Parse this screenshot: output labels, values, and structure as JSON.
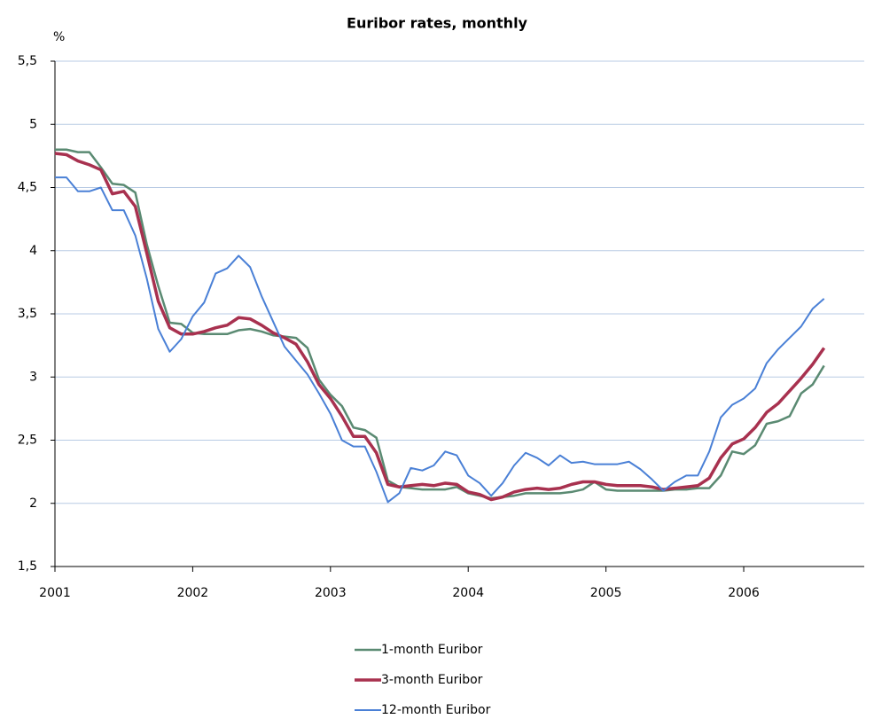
{
  "chart_data": {
    "type": "line",
    "title": "Euribor rates, monthly",
    "y_label": "%",
    "x": [
      2001,
      2001.0833,
      2001.1667,
      2001.25,
      2001.3333,
      2001.4167,
      2001.5,
      2001.5833,
      2001.6667,
      2001.75,
      2001.8333,
      2001.9167,
      2002,
      2002.0833,
      2002.1667,
      2002.25,
      2002.3333,
      2002.4167,
      2002.5,
      2002.5833,
      2002.6667,
      2002.75,
      2002.8333,
      2002.9167,
      2003,
      2003.0833,
      2003.1667,
      2003.25,
      2003.3333,
      2003.4167,
      2003.5,
      2003.5833,
      2003.6667,
      2003.75,
      2003.8333,
      2003.9167,
      2004,
      2004.0833,
      2004.1667,
      2004.25,
      2004.3333,
      2004.4167,
      2004.5,
      2004.5833,
      2004.6667,
      2004.75,
      2004.8333,
      2004.9167,
      2005,
      2005.0833,
      2005.1667,
      2005.25,
      2005.3333,
      2005.4167,
      2005.5,
      2005.5833,
      2005.6667,
      2005.75,
      2005.8333,
      2005.9167,
      2006,
      2006.0833,
      2006.1667,
      2006.25,
      2006.3333,
      2006.4167,
      2006.5,
      2006.5833
    ],
    "series": [
      {
        "name": "1-month Euribor",
        "color": "#5a8a72",
        "width": 2.5,
        "values": [
          4.8,
          4.8,
          4.78,
          4.78,
          4.66,
          4.53,
          4.52,
          4.46,
          4.05,
          3.72,
          3.43,
          3.42,
          3.35,
          3.34,
          3.34,
          3.34,
          3.37,
          3.38,
          3.36,
          3.33,
          3.32,
          3.31,
          3.23,
          2.98,
          2.86,
          2.77,
          2.6,
          2.58,
          2.52,
          2.18,
          2.13,
          2.12,
          2.11,
          2.11,
          2.11,
          2.13,
          2.08,
          2.06,
          2.04,
          2.05,
          2.06,
          2.08,
          2.08,
          2.08,
          2.08,
          2.09,
          2.11,
          2.17,
          2.11,
          2.1,
          2.1,
          2.1,
          2.1,
          2.1,
          2.11,
          2.11,
          2.12,
          2.12,
          2.22,
          2.41,
          2.39,
          2.46,
          2.63,
          2.65,
          2.69,
          2.87,
          2.94,
          3.09
        ]
      },
      {
        "name": "3-month Euribor",
        "color": "#a8314f",
        "width": 3.5,
        "values": [
          4.77,
          4.76,
          4.71,
          4.68,
          4.64,
          4.45,
          4.47,
          4.35,
          3.98,
          3.6,
          3.39,
          3.34,
          3.34,
          3.36,
          3.39,
          3.41,
          3.47,
          3.46,
          3.41,
          3.35,
          3.31,
          3.26,
          3.12,
          2.94,
          2.83,
          2.69,
          2.53,
          2.53,
          2.4,
          2.15,
          2.13,
          2.14,
          2.15,
          2.14,
          2.16,
          2.15,
          2.09,
          2.07,
          2.03,
          2.05,
          2.09,
          2.11,
          2.12,
          2.11,
          2.12,
          2.15,
          2.17,
          2.17,
          2.15,
          2.14,
          2.14,
          2.14,
          2.13,
          2.11,
          2.12,
          2.13,
          2.14,
          2.2,
          2.36,
          2.47,
          2.51,
          2.6,
          2.72,
          2.79,
          2.89,
          2.99,
          3.1,
          3.23
        ]
      },
      {
        "name": "12-month Euribor",
        "color": "#4a80d6",
        "width": 2,
        "values": [
          4.58,
          4.58,
          4.47,
          4.47,
          4.5,
          4.32,
          4.32,
          4.12,
          3.78,
          3.38,
          3.2,
          3.3,
          3.48,
          3.59,
          3.82,
          3.86,
          3.96,
          3.87,
          3.64,
          3.44,
          3.24,
          3.13,
          3.02,
          2.87,
          2.71,
          2.5,
          2.45,
          2.45,
          2.25,
          2.01,
          2.08,
          2.28,
          2.26,
          2.3,
          2.41,
          2.38,
          2.22,
          2.16,
          2.06,
          2.16,
          2.3,
          2.4,
          2.36,
          2.3,
          2.38,
          2.32,
          2.33,
          2.31,
          2.31,
          2.31,
          2.33,
          2.27,
          2.19,
          2.1,
          2.17,
          2.22,
          2.22,
          2.41,
          2.68,
          2.78,
          2.83,
          2.91,
          3.11,
          3.22,
          3.31,
          3.4,
          3.54,
          3.62
        ]
      }
    ],
    "xlim": [
      2001,
      2006.875
    ],
    "xticks": [
      2001,
      2002,
      2003,
      2004,
      2005,
      2006
    ],
    "ylim": [
      1.5,
      5.5
    ],
    "yticks": [
      {
        "value": 1.5,
        "label": "1,5"
      },
      2,
      {
        "value": 2.5,
        "label": "2,5"
      },
      3,
      {
        "value": 3.5,
        "label": "3,5"
      },
      4,
      {
        "value": 4.5,
        "label": "4,5"
      },
      5,
      {
        "value": 5.5,
        "label": "5,5"
      }
    ],
    "grid": true,
    "grid_color": "#b8cbe4",
    "legend": "bottom"
  }
}
